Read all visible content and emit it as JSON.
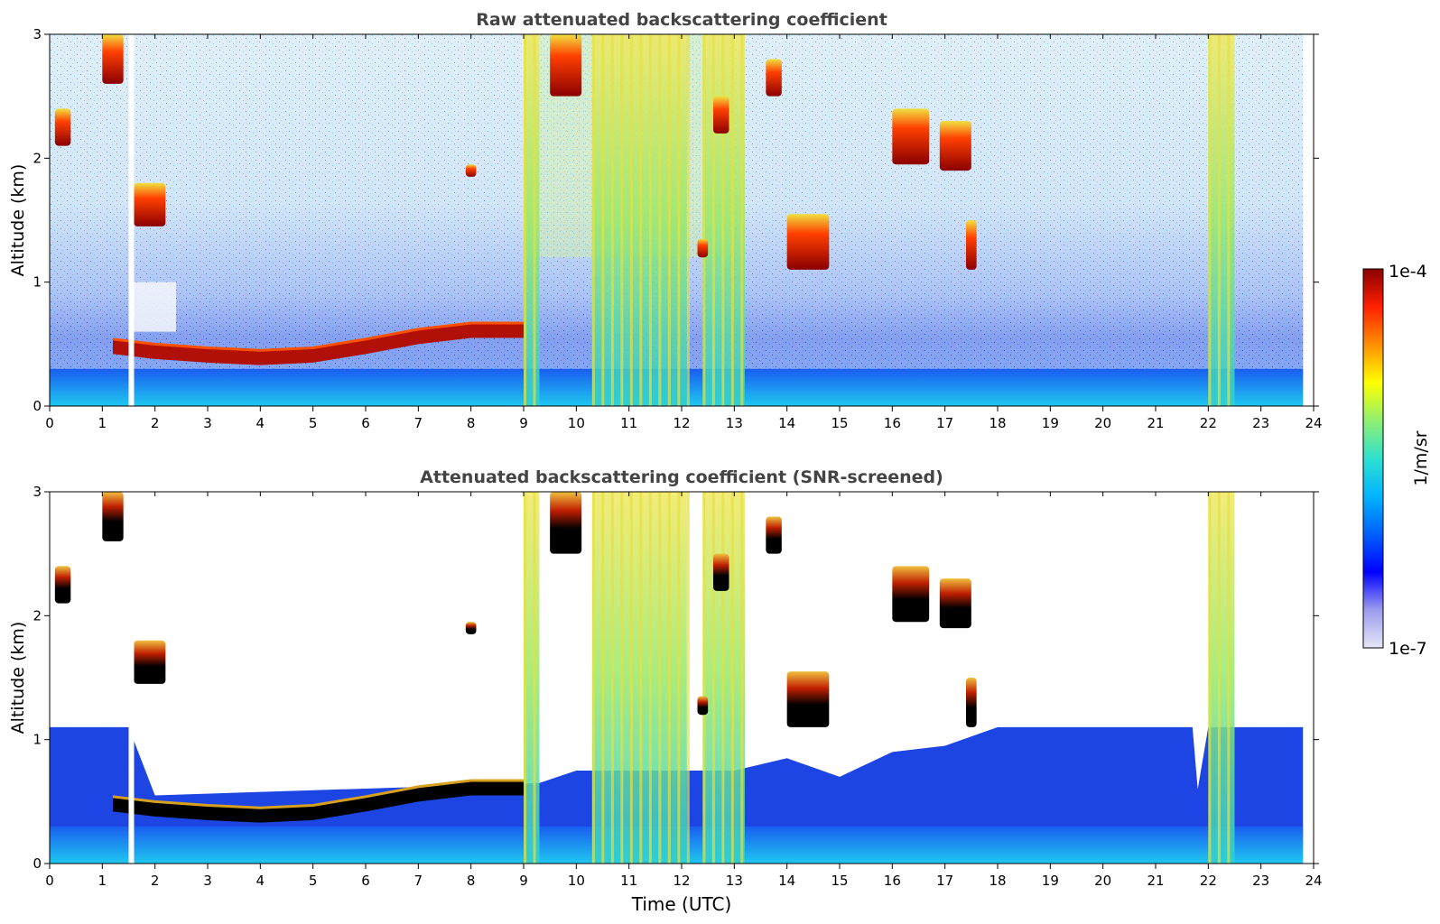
{
  "chart_data": [
    {
      "type": "heatmap",
      "title": "Raw attenuated backscattering coefficient",
      "xlabel": "",
      "ylabel": "Altitude (km)",
      "xlim": [
        0,
        24
      ],
      "ylim": [
        0,
        3
      ],
      "xticks": [
        "0",
        "1",
        "2",
        "3",
        "4",
        "5",
        "6",
        "7",
        "8",
        "9",
        "10",
        "11",
        "12",
        "13",
        "14",
        "15",
        "16",
        "17",
        "18",
        "19",
        "20",
        "21",
        "22",
        "23",
        "24"
      ],
      "yticks": [
        "0",
        "1",
        "2",
        "3"
      ],
      "data_gap_x": 1.5,
      "boundary_layer_top": [
        [
          1.2,
          0.42
        ],
        [
          2,
          0.38
        ],
        [
          3,
          0.35
        ],
        [
          4,
          0.33
        ],
        [
          5,
          0.35
        ],
        [
          6,
          0.42
        ],
        [
          7,
          0.5
        ],
        [
          8,
          0.55
        ],
        [
          9,
          0.55
        ]
      ],
      "clouds": [
        {
          "x0": 1.0,
          "x1": 1.4,
          "y0": 2.6,
          "y1": 3.0
        },
        {
          "x0": 0.1,
          "x1": 0.4,
          "y0": 2.1,
          "y1": 2.4
        },
        {
          "x0": 1.6,
          "x1": 2.2,
          "y0": 1.45,
          "y1": 1.8
        },
        {
          "x0": 9.5,
          "x1": 10.1,
          "y0": 2.5,
          "y1": 3.0
        },
        {
          "x0": 12.6,
          "x1": 12.9,
          "y0": 2.2,
          "y1": 2.5
        },
        {
          "x0": 13.6,
          "x1": 13.9,
          "y0": 2.5,
          "y1": 2.8
        },
        {
          "x0": 14.0,
          "x1": 14.8,
          "y0": 1.1,
          "y1": 1.55
        },
        {
          "x0": 16.0,
          "x1": 16.7,
          "y0": 1.95,
          "y1": 2.4
        },
        {
          "x0": 16.9,
          "x1": 17.5,
          "y0": 1.9,
          "y1": 2.3
        },
        {
          "x0": 17.4,
          "x1": 17.6,
          "y0": 1.1,
          "y1": 1.5
        },
        {
          "x0": 12.3,
          "x1": 12.5,
          "y0": 1.2,
          "y1": 1.35
        },
        {
          "x0": 7.9,
          "x1": 8.1,
          "y0": 1.85,
          "y1": 1.95
        }
      ],
      "precip_bands": [
        [
          9.0,
          9.3
        ],
        [
          10.3,
          12.1
        ],
        [
          12.4,
          13.2
        ],
        [
          22.0,
          22.5
        ]
      ]
    },
    {
      "type": "heatmap",
      "title": "Attenuated backscattering coefficient (SNR-screened)",
      "xlabel": "Time (UTC)",
      "ylabel": "Altitude (km)",
      "xlim": [
        0,
        24
      ],
      "ylim": [
        0,
        3
      ],
      "xticks": [
        "0",
        "1",
        "2",
        "3",
        "4",
        "5",
        "6",
        "7",
        "8",
        "9",
        "10",
        "11",
        "12",
        "13",
        "14",
        "15",
        "16",
        "17",
        "18",
        "19",
        "20",
        "21",
        "22",
        "23",
        "24"
      ],
      "yticks": [
        "0",
        "1",
        "2",
        "3"
      ],
      "data_gap_x": 1.5,
      "boundary_layer_top": [
        [
          1.2,
          0.42
        ],
        [
          2,
          0.38
        ],
        [
          3,
          0.35
        ],
        [
          4,
          0.33
        ],
        [
          5,
          0.35
        ],
        [
          6,
          0.42
        ],
        [
          7,
          0.5
        ],
        [
          8,
          0.55
        ],
        [
          9,
          0.55
        ]
      ],
      "clouds": [
        {
          "x0": 1.0,
          "x1": 1.4,
          "y0": 2.6,
          "y1": 3.0
        },
        {
          "x0": 0.1,
          "x1": 0.4,
          "y0": 2.1,
          "y1": 2.4
        },
        {
          "x0": 1.6,
          "x1": 2.2,
          "y0": 1.45,
          "y1": 1.8
        },
        {
          "x0": 9.5,
          "x1": 10.1,
          "y0": 2.5,
          "y1": 3.0
        },
        {
          "x0": 12.6,
          "x1": 12.9,
          "y0": 2.2,
          "y1": 2.5
        },
        {
          "x0": 13.6,
          "x1": 13.9,
          "y0": 2.5,
          "y1": 2.8
        },
        {
          "x0": 14.0,
          "x1": 14.8,
          "y0": 1.1,
          "y1": 1.55
        },
        {
          "x0": 16.0,
          "x1": 16.7,
          "y0": 1.95,
          "y1": 2.4
        },
        {
          "x0": 16.9,
          "x1": 17.5,
          "y0": 1.9,
          "y1": 2.3
        },
        {
          "x0": 17.4,
          "x1": 17.6,
          "y0": 1.1,
          "y1": 1.5
        },
        {
          "x0": 12.3,
          "x1": 12.5,
          "y0": 1.2,
          "y1": 1.35
        },
        {
          "x0": 7.9,
          "x1": 8.1,
          "y0": 1.85,
          "y1": 1.95
        }
      ],
      "precip_bands": [
        [
          9.0,
          9.3
        ],
        [
          10.3,
          12.1
        ],
        [
          12.4,
          13.2
        ],
        [
          22.0,
          22.5
        ]
      ],
      "screened_layer_top": [
        [
          0,
          1.1
        ],
        [
          1.5,
          1.1
        ],
        [
          2,
          0.55
        ],
        [
          9.3,
          0.65
        ],
        [
          10,
          0.75
        ],
        [
          13,
          0.75
        ],
        [
          14,
          0.85
        ],
        [
          15,
          0.7
        ],
        [
          16,
          0.9
        ],
        [
          17,
          0.95
        ],
        [
          18,
          1.1
        ],
        [
          21.7,
          1.1
        ],
        [
          21.8,
          0.6
        ],
        [
          22,
          1.1
        ],
        [
          23.8,
          1.1
        ]
      ]
    }
  ],
  "colorbar": {
    "label": "1/m/sr",
    "max_label": "1e-4",
    "min_label": "1e-7",
    "colors": [
      "#e6e6f5",
      "#9c9cf0",
      "#0000ff",
      "#0060ff",
      "#00b4ff",
      "#30e0d0",
      "#90f070",
      "#ffff00",
      "#ff9000",
      "#ff2000",
      "#8b0000"
    ]
  },
  "colors": {
    "noise_bg": "#cfe3f7",
    "blue_low": "#1a3fe0",
    "cyan": "#18b8ee",
    "green": "#a8e860",
    "yellow": "#f0e040",
    "red": "#d01000",
    "dark_red": "#8b0000",
    "black": "#000000"
  }
}
